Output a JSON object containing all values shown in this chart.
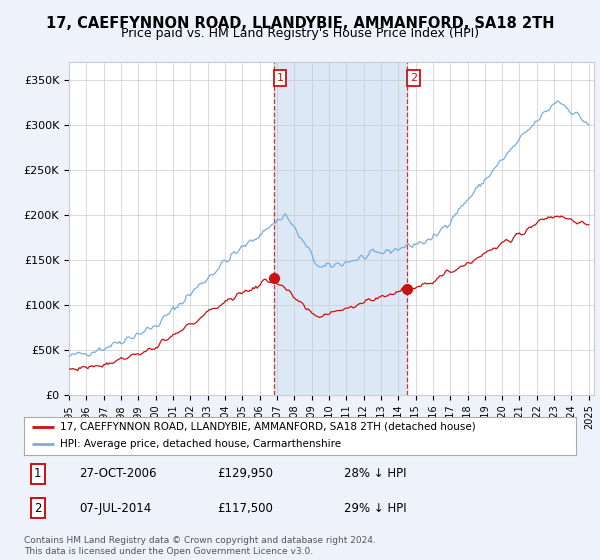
{
  "title": "17, CAEFFYNNON ROAD, LLANDYBIE, AMMANFORD, SA18 2TH",
  "subtitle": "Price paid vs. HM Land Registry's House Price Index (HPI)",
  "title_fontsize": 10.5,
  "subtitle_fontsize": 9,
  "ylabel_ticks": [
    "£0",
    "£50K",
    "£100K",
    "£150K",
    "£200K",
    "£250K",
    "£300K",
    "£350K"
  ],
  "ytick_values": [
    0,
    50000,
    100000,
    150000,
    200000,
    250000,
    300000,
    350000
  ],
  "ylim": [
    0,
    370000
  ],
  "xlim_start": 1995.0,
  "xlim_end": 2025.3,
  "hpi_color": "#7aaee0",
  "price_color": "#cc1111",
  "sale1_date": 2006.82,
  "sale1_price": 129950,
  "sale2_date": 2014.51,
  "sale2_price": 117500,
  "legend_line1": "17, CAEFFYNNON ROAD, LLANDYBIE, AMMANFORD, SA18 2TH (detached house)",
  "legend_line2": "HPI: Average price, detached house, Carmarthenshire",
  "annotation1_date": "27-OCT-2006",
  "annotation1_price": "£129,950",
  "annotation1_hpi": "28% ↓ HPI",
  "annotation2_date": "07-JUL-2014",
  "annotation2_price": "£117,500",
  "annotation2_hpi": "29% ↓ HPI",
  "footer": "Contains HM Land Registry data © Crown copyright and database right 2024.\nThis data is licensed under the Open Government Licence v3.0.",
  "background_color": "#eef2fb",
  "plot_bg_color": "#ffffff",
  "grid_color": "#cccccc",
  "span_color": "#dce8f5"
}
